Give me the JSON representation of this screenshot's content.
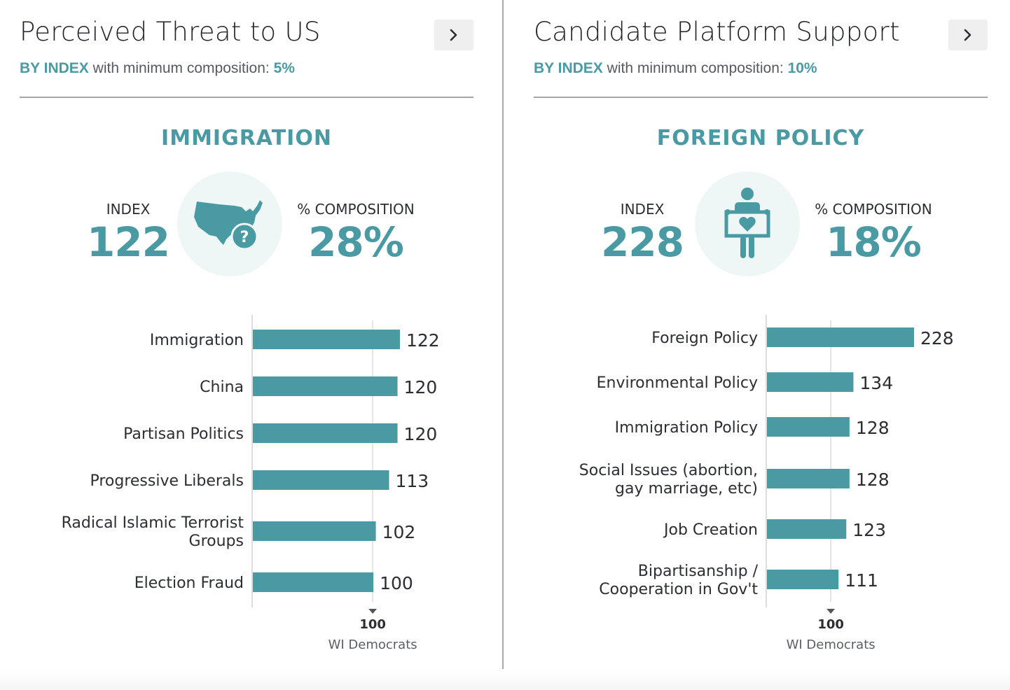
{
  "colors": {
    "accent": "#4a9aa3",
    "bar": "#4a9aa3",
    "text": "#2b2e33",
    "icon_bg": "#eff6f6"
  },
  "panels": [
    {
      "title": "Perceived Threat to US",
      "next_icon": "chevron-right-icon",
      "subtitle": {
        "by": "BY INDEX",
        "middle": "with minimum composition:",
        "min": "5%"
      },
      "metric": {
        "name": "IMMIGRATION",
        "index_label": "INDEX",
        "index_value": "122",
        "composition_label": "% COMPOSITION",
        "composition_value": "28%",
        "icon": "us-map-question-icon"
      }
    },
    {
      "title": "Candidate Platform Support",
      "next_icon": "chevron-right-icon",
      "subtitle": {
        "by": "BY INDEX",
        "middle": "with minimum composition:",
        "min": "10%"
      },
      "metric": {
        "name": "FOREIGN POLICY",
        "index_label": "INDEX",
        "index_value": "228",
        "composition_label": "% COMPOSITION",
        "composition_value": "18%",
        "icon": "person-holding-heart-sign-icon"
      }
    }
  ],
  "chart_data": [
    {
      "type": "bar",
      "orientation": "horizontal",
      "title": "Perceived Threat to US",
      "categories": [
        [
          "Immigration"
        ],
        [
          "China"
        ],
        [
          "Partisan Politics"
        ],
        [
          "Progressive Liberals"
        ],
        [
          "Radical Islamic Terrorist",
          "Groups"
        ],
        [
          "Election Fraud"
        ]
      ],
      "values": [
        122,
        120,
        120,
        113,
        102,
        100
      ],
      "reference_line": {
        "value": 100,
        "label": "100",
        "group": "WI Democrats"
      },
      "xlim": [
        0,
        122
      ]
    },
    {
      "type": "bar",
      "orientation": "horizontal",
      "title": "Candidate Platform Support",
      "categories": [
        [
          "Foreign Policy"
        ],
        [
          "Environmental Policy"
        ],
        [
          "Immigration Policy"
        ],
        [
          "Social Issues (abortion,",
          "gay marriage, etc)"
        ],
        [
          "Job Creation"
        ],
        [
          "Bipartisanship /",
          "Cooperation in Gov't"
        ]
      ],
      "values": [
        228,
        134,
        128,
        128,
        123,
        111
      ],
      "reference_line": {
        "value": 100,
        "label": "100",
        "group": "WI Democrats"
      },
      "xlim": [
        0,
        228
      ]
    }
  ]
}
